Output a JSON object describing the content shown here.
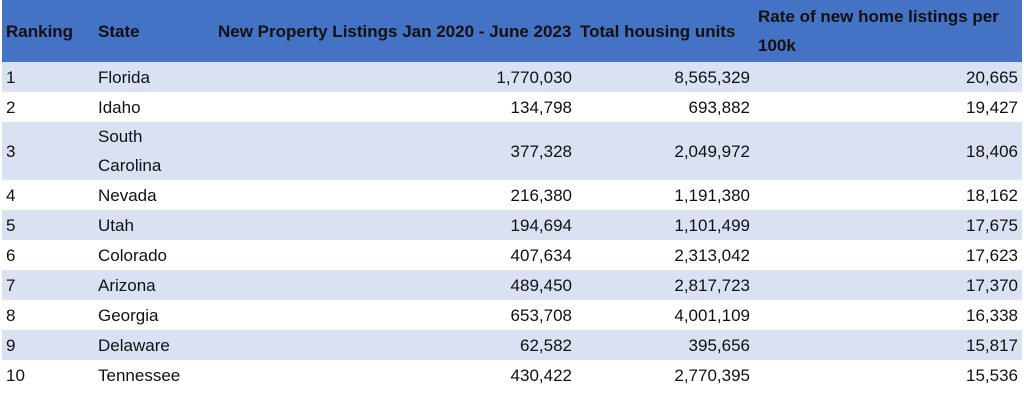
{
  "table": {
    "header": [
      "Ranking",
      "State",
      "New Property Listings Jan 2020 - June 2023",
      "Total housing units",
      "Rate of new home listings per 100k"
    ],
    "rows": [
      [
        "1",
        "Florida",
        "1,770,030",
        "8,565,329",
        "20,665"
      ],
      [
        "2",
        "Idaho",
        "134,798",
        "693,882",
        "19,427"
      ],
      [
        "3",
        "South Carolina",
        "377,328",
        "2,049,972",
        "18,406"
      ],
      [
        "4",
        "Nevada",
        "216,380",
        "1,191,380",
        "18,162"
      ],
      [
        "5",
        "Utah",
        "194,694",
        "1,101,499",
        "17,675"
      ],
      [
        "6",
        "Colorado",
        "407,634",
        "2,313,042",
        "17,623"
      ],
      [
        "7",
        "Arizona",
        "489,450",
        "2,817,723",
        "17,370"
      ],
      [
        "8",
        "Georgia",
        "653,708",
        "4,001,109",
        "16,338"
      ],
      [
        "9",
        "Delaware",
        "62,582",
        "395,656",
        "15,817"
      ],
      [
        "10",
        "Tennessee",
        "430,422",
        "2,770,395",
        "15,536"
      ]
    ]
  }
}
